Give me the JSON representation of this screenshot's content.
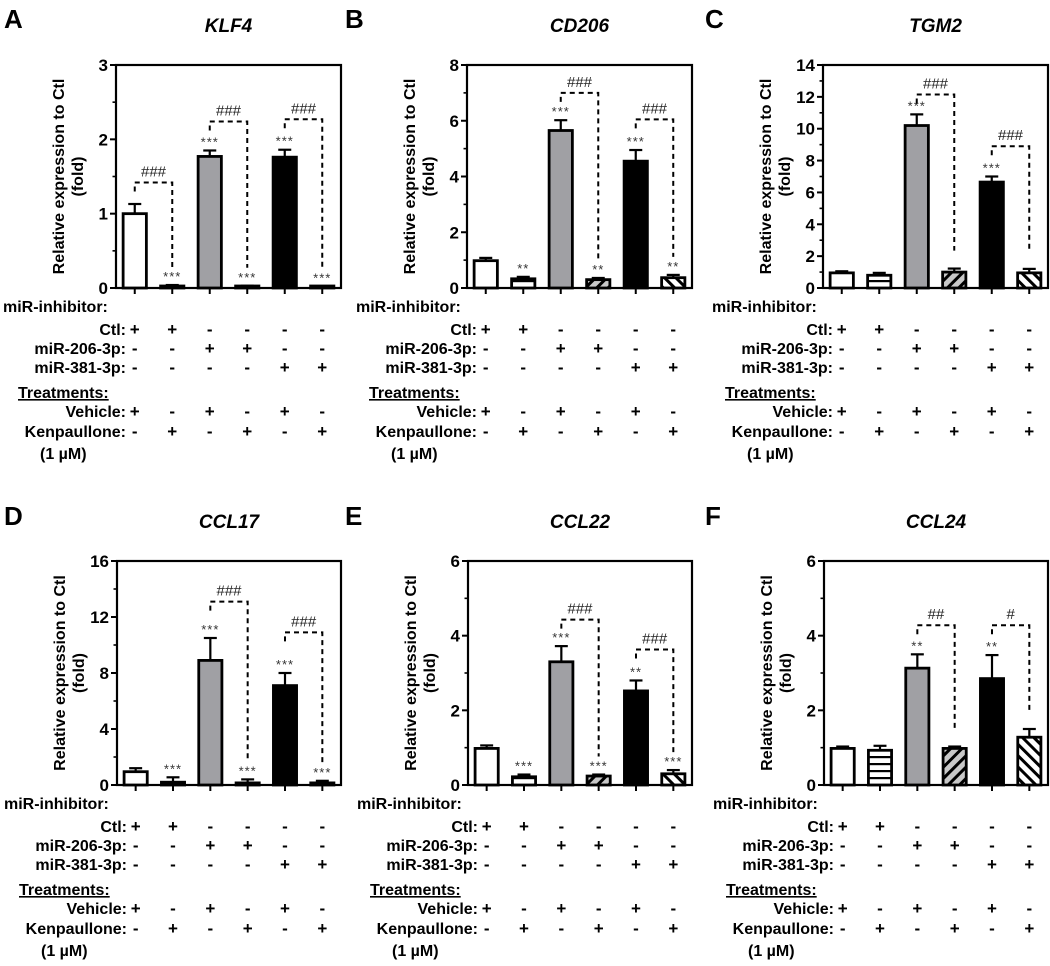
{
  "figure": {
    "bar_fills": [
      "#ffffff",
      "#ffffff",
      "#a0a0a4",
      "#c8c8c8",
      "#000000",
      "#ffffff"
    ],
    "bar_patterns": [
      "solid",
      "horizontal-stripes",
      "solid",
      "back-diagonal-stripes",
      "solid",
      "forward-diagonal-stripes"
    ],
    "outline_color": "#000000",
    "condition_table": {
      "group1_title": "miR-inhibitor:",
      "group2_title": "Treatments:",
      "footnote": "(1 µM)",
      "rows": [
        {
          "label": "Ctl:",
          "group": 1,
          "values": [
            "+",
            "+",
            "-",
            "-",
            "-",
            "-"
          ]
        },
        {
          "label": "miR-206-3p:",
          "group": 1,
          "values": [
            "-",
            "-",
            "+",
            "+",
            "-",
            "-"
          ]
        },
        {
          "label": "miR-381-3p:",
          "group": 1,
          "values": [
            "-",
            "-",
            "-",
            "-",
            "+",
            "+"
          ]
        },
        {
          "label": "Vehicle:",
          "group": 2,
          "values": [
            "+",
            "-",
            "+",
            "-",
            "+",
            "-"
          ]
        },
        {
          "label": "Kenpaullone:",
          "group": 2,
          "values": [
            "-",
            "+",
            "-",
            "+",
            "-",
            "+"
          ]
        }
      ]
    }
  },
  "chart_data": [
    {
      "panel": "A",
      "type": "bar",
      "title": "KLF4",
      "xlabel": "",
      "ylabel": "Relative expression to Ctl\n(fold)",
      "ylim": [
        0,
        3
      ],
      "yticks": [
        0,
        1,
        2,
        3
      ],
      "minor_ticks": 1,
      "categories": [
        "Ctl+Vehicle",
        "Ctl+Kenpaullone",
        "miR-206-3p+Vehicle",
        "miR-206-3p+Kenpaullone",
        "miR-381-3p+Vehicle",
        "miR-381-3p+Kenpaullone"
      ],
      "values": [
        1.0,
        0.02,
        1.77,
        0.02,
        1.76,
        0.01
      ],
      "errors": [
        0.13,
        0.02,
        0.08,
        0.01,
        0.1,
        0.01
      ],
      "stars": [
        "",
        "***",
        "***",
        "***",
        "***",
        "***"
      ],
      "brackets": [
        {
          "from": 0,
          "to": 1,
          "label": "###",
          "y": 1.42
        },
        {
          "from": 2,
          "to": 3,
          "label": "###",
          "y": 2.24
        },
        {
          "from": 4,
          "to": 5,
          "label": "###",
          "y": 2.27
        }
      ]
    },
    {
      "panel": "B",
      "type": "bar",
      "title": "CD206",
      "xlabel": "",
      "ylabel": "Relative expression to Ctl\n(fold)",
      "ylim": [
        0,
        8
      ],
      "yticks": [
        0,
        2,
        4,
        6,
        8
      ],
      "minor_ticks": 1,
      "categories": [
        "Ctl+Vehicle",
        "Ctl+Kenpaullone",
        "miR-206-3p+Vehicle",
        "miR-206-3p+Kenpaullone",
        "miR-381-3p+Vehicle",
        "miR-381-3p+Kenpaullone"
      ],
      "values": [
        0.98,
        0.33,
        5.65,
        0.3,
        4.55,
        0.37
      ],
      "errors": [
        0.1,
        0.07,
        0.37,
        0.06,
        0.4,
        0.1
      ],
      "stars": [
        "",
        "**",
        "***",
        "**",
        "***",
        "**"
      ],
      "brackets": [
        {
          "from": 2,
          "to": 3,
          "label": "###",
          "y": 7.0
        },
        {
          "from": 4,
          "to": 5,
          "label": "###",
          "y": 6.05
        }
      ]
    },
    {
      "panel": "C",
      "type": "bar",
      "title": "TGM2",
      "xlabel": "",
      "ylabel": "Relative expression to Ctl\n(fold)",
      "ylim": [
        0,
        14
      ],
      "yticks": [
        0,
        2,
        4,
        6,
        8,
        10,
        12,
        14
      ],
      "minor_ticks": 1,
      "categories": [
        "Ctl+Vehicle",
        "Ctl+Kenpaullone",
        "miR-206-3p+Vehicle",
        "miR-206-3p+Kenpaullone",
        "miR-381-3p+Vehicle",
        "miR-381-3p+Kenpaullone"
      ],
      "values": [
        0.95,
        0.8,
        10.2,
        1.0,
        6.65,
        0.95
      ],
      "errors": [
        0.1,
        0.15,
        0.7,
        0.22,
        0.35,
        0.25
      ],
      "stars": [
        "",
        "",
        "***",
        "",
        "***",
        ""
      ],
      "brackets": [
        {
          "from": 2,
          "to": 3,
          "label": "###",
          "y": 12.15
        },
        {
          "from": 4,
          "to": 5,
          "label": "###",
          "y": 8.9
        }
      ]
    },
    {
      "panel": "D",
      "type": "bar",
      "title": "CCL17",
      "xlabel": "",
      "ylabel": "Relative expression to Ctl\n(fold)",
      "ylim": [
        0,
        16
      ],
      "yticks": [
        0,
        4,
        8,
        12,
        16
      ],
      "minor_ticks": 1,
      "categories": [
        "Ctl+Vehicle",
        "Ctl+Kenpaullone",
        "miR-206-3p+Vehicle",
        "miR-206-3p+Kenpaullone",
        "miR-381-3p+Vehicle",
        "miR-381-3p+Kenpaullone"
      ],
      "values": [
        0.95,
        0.2,
        8.9,
        0.15,
        7.1,
        0.15
      ],
      "errors": [
        0.25,
        0.35,
        1.6,
        0.25,
        0.9,
        0.15
      ],
      "stars": [
        "",
        "***",
        "***",
        "***",
        "***",
        "***"
      ],
      "brackets": [
        {
          "from": 2,
          "to": 3,
          "label": "###",
          "y": 13.1
        },
        {
          "from": 4,
          "to": 5,
          "label": "###",
          "y": 10.9
        }
      ]
    },
    {
      "panel": "E",
      "type": "bar",
      "title": "CCL22",
      "xlabel": "",
      "ylabel": "Relative expression to Ctl\n(fold)",
      "ylim": [
        0,
        6
      ],
      "yticks": [
        0,
        2,
        4,
        6
      ],
      "minor_ticks": 1,
      "categories": [
        "Ctl+Vehicle",
        "Ctl+Kenpaullone",
        "miR-206-3p+Vehicle",
        "miR-206-3p+Kenpaullone",
        "miR-381-3p+Vehicle",
        "miR-381-3p+Kenpaullone"
      ],
      "values": [
        0.98,
        0.22,
        3.3,
        0.24,
        2.52,
        0.3
      ],
      "errors": [
        0.08,
        0.06,
        0.42,
        0.04,
        0.28,
        0.1
      ],
      "stars": [
        "",
        "***",
        "***",
        "***",
        "**",
        "***"
      ],
      "brackets": [
        {
          "from": 2,
          "to": 3,
          "label": "###",
          "y": 4.43
        },
        {
          "from": 4,
          "to": 5,
          "label": "###",
          "y": 3.63
        }
      ]
    },
    {
      "panel": "F",
      "type": "bar",
      "title": "CCL24",
      "xlabel": "",
      "ylabel": "Relative expression to Ctl\n(fold)",
      "ylim": [
        0,
        6
      ],
      "yticks": [
        0,
        2,
        4,
        6
      ],
      "minor_ticks": 1,
      "categories": [
        "Ctl+Vehicle",
        "Ctl+Kenpaullone",
        "miR-206-3p+Vehicle",
        "miR-206-3p+Kenpaullone",
        "miR-381-3p+Vehicle",
        "miR-381-3p+Kenpaullone"
      ],
      "values": [
        0.98,
        0.93,
        3.13,
        0.98,
        2.85,
        1.28
      ],
      "errors": [
        0.05,
        0.12,
        0.37,
        0.05,
        0.63,
        0.22
      ],
      "stars": [
        "",
        "",
        "**",
        "",
        "**",
        ""
      ],
      "brackets": [
        {
          "from": 2,
          "to": 3,
          "label": "##",
          "y": 4.28
        },
        {
          "from": 4,
          "to": 5,
          "label": "#",
          "y": 4.28
        }
      ]
    }
  ]
}
